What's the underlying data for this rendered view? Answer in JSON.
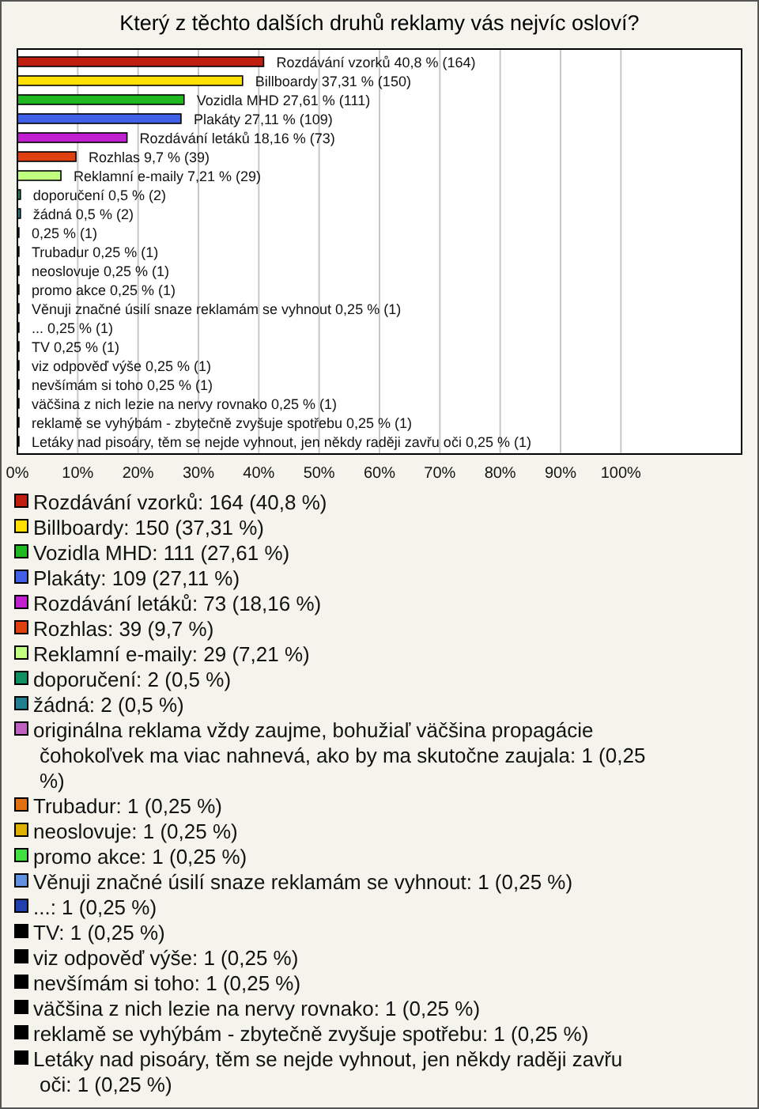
{
  "chart_data": {
    "type": "bar",
    "orientation": "horizontal",
    "title": "Který z těchto dalších druhů reklamy vás nejvíc osloví?",
    "categories": [
      null,
      null,
      null,
      null,
      null,
      null,
      null,
      null,
      null,
      null,
      null,
      null,
      null,
      null,
      null,
      null,
      null,
      null,
      null,
      null,
      null
    ],
    "values": [
      40.8,
      37.31,
      27.61,
      27.11,
      18.16,
      9.7,
      7.21,
      0.5,
      0.5,
      0.25,
      0.25,
      0.25,
      0.25,
      0.25,
      0.25,
      0.25,
      0.25,
      0.25,
      0.25,
      0.25,
      0.25
    ],
    "colors": [
      "#c01e0e",
      "#ffe000",
      "#20b820",
      "#4060e8",
      "#c020d0",
      "#e04010",
      "#c0ff80",
      "#109060",
      "#208090",
      "#c060c0",
      "#e07010",
      "#e0b000",
      "#40e040",
      "#6090e0",
      "#2040b0",
      "#000000",
      "#000000",
      "#000000",
      "#000000",
      "#000000",
      "#000000"
    ],
    "value_labels": [
      "Rozdávání vzorků 40,8 % (164)",
      "Billboardy 37,31 % (150)",
      "Vozidla MHD 27,61 % (111)",
      "Plakáty 27,11 % (109)",
      "Rozdávání letáků 18,16 % (73)",
      "Rozhlas 9,7 % (39)",
      "Reklamní e-maily 7,21 % (29)",
      "doporučení 0,5 % (2)",
      "žádná 0,5 % (2)",
      "0,25 % (1)",
      "Trubadur 0,25 % (1)",
      "neoslovuje 0,25 % (1)",
      "promo akce 0,25 % (1)",
      "Věnuji značné úsilí snaze reklamám se vyhnout 0,25 % (1)",
      "... 0,25 % (1)",
      "TV 0,25 % (1)",
      "viz odpověď výše 0,25 % (1)",
      "nevšímám si toho 0,25 % (1)",
      "väčšina z nich lezie na nervy rovnako 0,25 % (1)",
      "reklamě se vyhýbám - zbytečně zvyšuje spotřebu 0,25 % (1)",
      "Letáky nad pisoáry, těm se nejde vyhnout, jen někdy raději zavřu oči 0,25 % (1)"
    ],
    "annotations": [
      "Rozdávání vzorků: 164 (40,8 %)",
      "Billboardy: 150 (37,31 %)",
      "Vozidla MHD: 111 (27,61 %)",
      "Plakáty: 109 (27,11 %)",
      "Rozdávání letáků: 73 (18,16 %)",
      "Rozhlas: 39 (9,7 %)",
      "Reklamní e-maily: 29 (7,21 %)",
      "doporučení: 2 (0,5 %)",
      "žádná: 2 (0,5 %)",
      "originálna reklama vždy zaujme, bohužiaľ väčšina propagácie čohokoľvek ma viac nahnevá, ako by ma skutočne zaujala: 1 (0,25 %)",
      "Trubadur: 1 (0,25 %)",
      "neoslovuje: 1 (0,25 %)",
      "promo akce: 1 (0,25 %)",
      "Věnuji značné úsilí snaze reklamám se vyhnout: 1 (0,25 %)",
      "...: 1 (0,25 %)",
      "TV: 1 (0,25 %)",
      "viz odpověď výše: 1 (0,25 %)",
      "nevšímám si toho: 1 (0,25 %)",
      "väčšina z nich lezie na nervy rovnako: 1 (0,25 %)",
      "reklamě se vyhýbám - zbytečně zvyšuje spotřebu: 1 (0,25 %)",
      "Letáky nad pisoáry, těm se nejde vyhnout, jen někdy raději zavřu oči: 1 (0,25 %)"
    ],
    "xlim": [
      0,
      120
    ],
    "xticks": [
      {
        "value": 0,
        "label": "0%"
      },
      {
        "value": 10,
        "label": "10%"
      },
      {
        "value": 20,
        "label": "20%"
      },
      {
        "value": 30,
        "label": "30%"
      },
      {
        "value": 40,
        "label": "40%"
      },
      {
        "value": 50,
        "label": "50%"
      },
      {
        "value": 60,
        "label": "60%"
      },
      {
        "value": 70,
        "label": "70%"
      },
      {
        "value": 80,
        "label": "80%"
      },
      {
        "value": 90,
        "label": "90%"
      },
      {
        "value": 100,
        "label": "100%"
      }
    ],
    "grid": "x"
  }
}
